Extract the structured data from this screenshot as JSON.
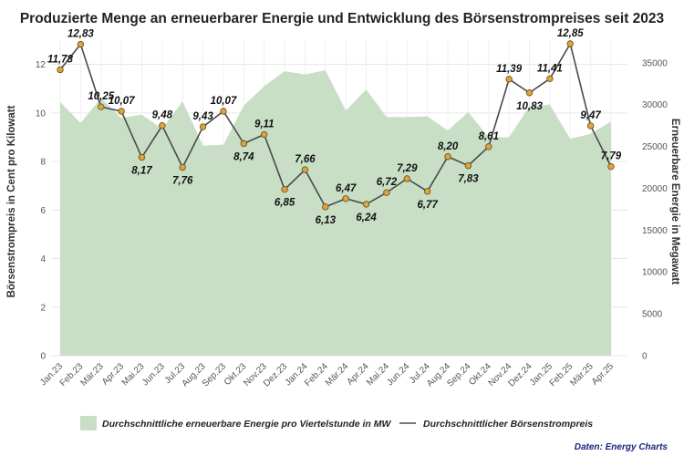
{
  "chart_data": {
    "type": "area",
    "title": "Produzierte Menge an erneuerbarer Energie und Entwicklung des Börsenstrompreises seit 2023",
    "categories": [
      "Jan.23",
      "Feb.23",
      "Mär.23",
      "Apr.23",
      "Mai.23",
      "Jun.23",
      "Jul.23",
      "Aug.23",
      "Sep.23",
      "Okt.23",
      "Nov.23",
      "Dez.23",
      "Jan.24",
      "Feb.24",
      "Mär.24",
      "Apr.24",
      "Mai.24",
      "Jun.24",
      "Jul.24",
      "Aug.24",
      "Sep.24",
      "Okt.24",
      "Nov.24",
      "Dez.24",
      "Jan.25",
      "Feb.25",
      "Mär.25",
      "Apr.25"
    ],
    "ylabel_left": "Börsenstrompreis in Cent pro Kilowatt",
    "ylabel_right": "Erneuerbare Energie in Megawatt",
    "ylim_left": [
      0,
      13
    ],
    "ylim_right": [
      0,
      37700
    ],
    "yticks_left": [
      0,
      2,
      4,
      6,
      8,
      10,
      12
    ],
    "yticks_right": [
      0,
      5000,
      10000,
      15000,
      20000,
      25000,
      30000,
      35000
    ],
    "grid": true,
    "legend_position": "bottom",
    "series": [
      {
        "name": "Durchschnittliche erneuerbare Energie pro Viertelstunde in MW",
        "type": "area",
        "axis": "right",
        "color": "#c8dfc6",
        "values": [
          30300,
          27800,
          30800,
          28400,
          28800,
          27100,
          30400,
          25100,
          25200,
          29900,
          32200,
          34000,
          33600,
          34100,
          29300,
          31800,
          28500,
          28500,
          28600,
          26900,
          29100,
          26100,
          26100,
          29800,
          30000,
          25900,
          26500,
          28000
        ]
      },
      {
        "name": "Durchschnittlicher Börsenstrompreis",
        "type": "line",
        "axis": "left",
        "color": "#4a4a4a",
        "marker_color": "#d9a441",
        "values": [
          11.78,
          12.83,
          10.25,
          10.07,
          8.17,
          9.48,
          7.76,
          9.43,
          10.07,
          8.74,
          9.11,
          6.85,
          7.66,
          6.13,
          6.47,
          6.24,
          6.72,
          7.29,
          6.77,
          8.2,
          7.83,
          8.61,
          11.39,
          10.83,
          11.41,
          12.85,
          9.47,
          7.79
        ],
        "labels": [
          "11,78",
          "12,83",
          "10,25",
          "10,07",
          "8,17",
          "9,48",
          "7,76",
          "9,43",
          "10,07",
          "8,74",
          "9,11",
          "6,85",
          "7,66",
          "6,13",
          "6,47",
          "6,24",
          "6,72",
          "7,29",
          "6,77",
          "8,20",
          "7,83",
          "8,61",
          "11,39",
          "10,83",
          "11,41",
          "12,85",
          "9,47",
          "7,79"
        ]
      }
    ],
    "source": "Daten: Energy Charts"
  }
}
